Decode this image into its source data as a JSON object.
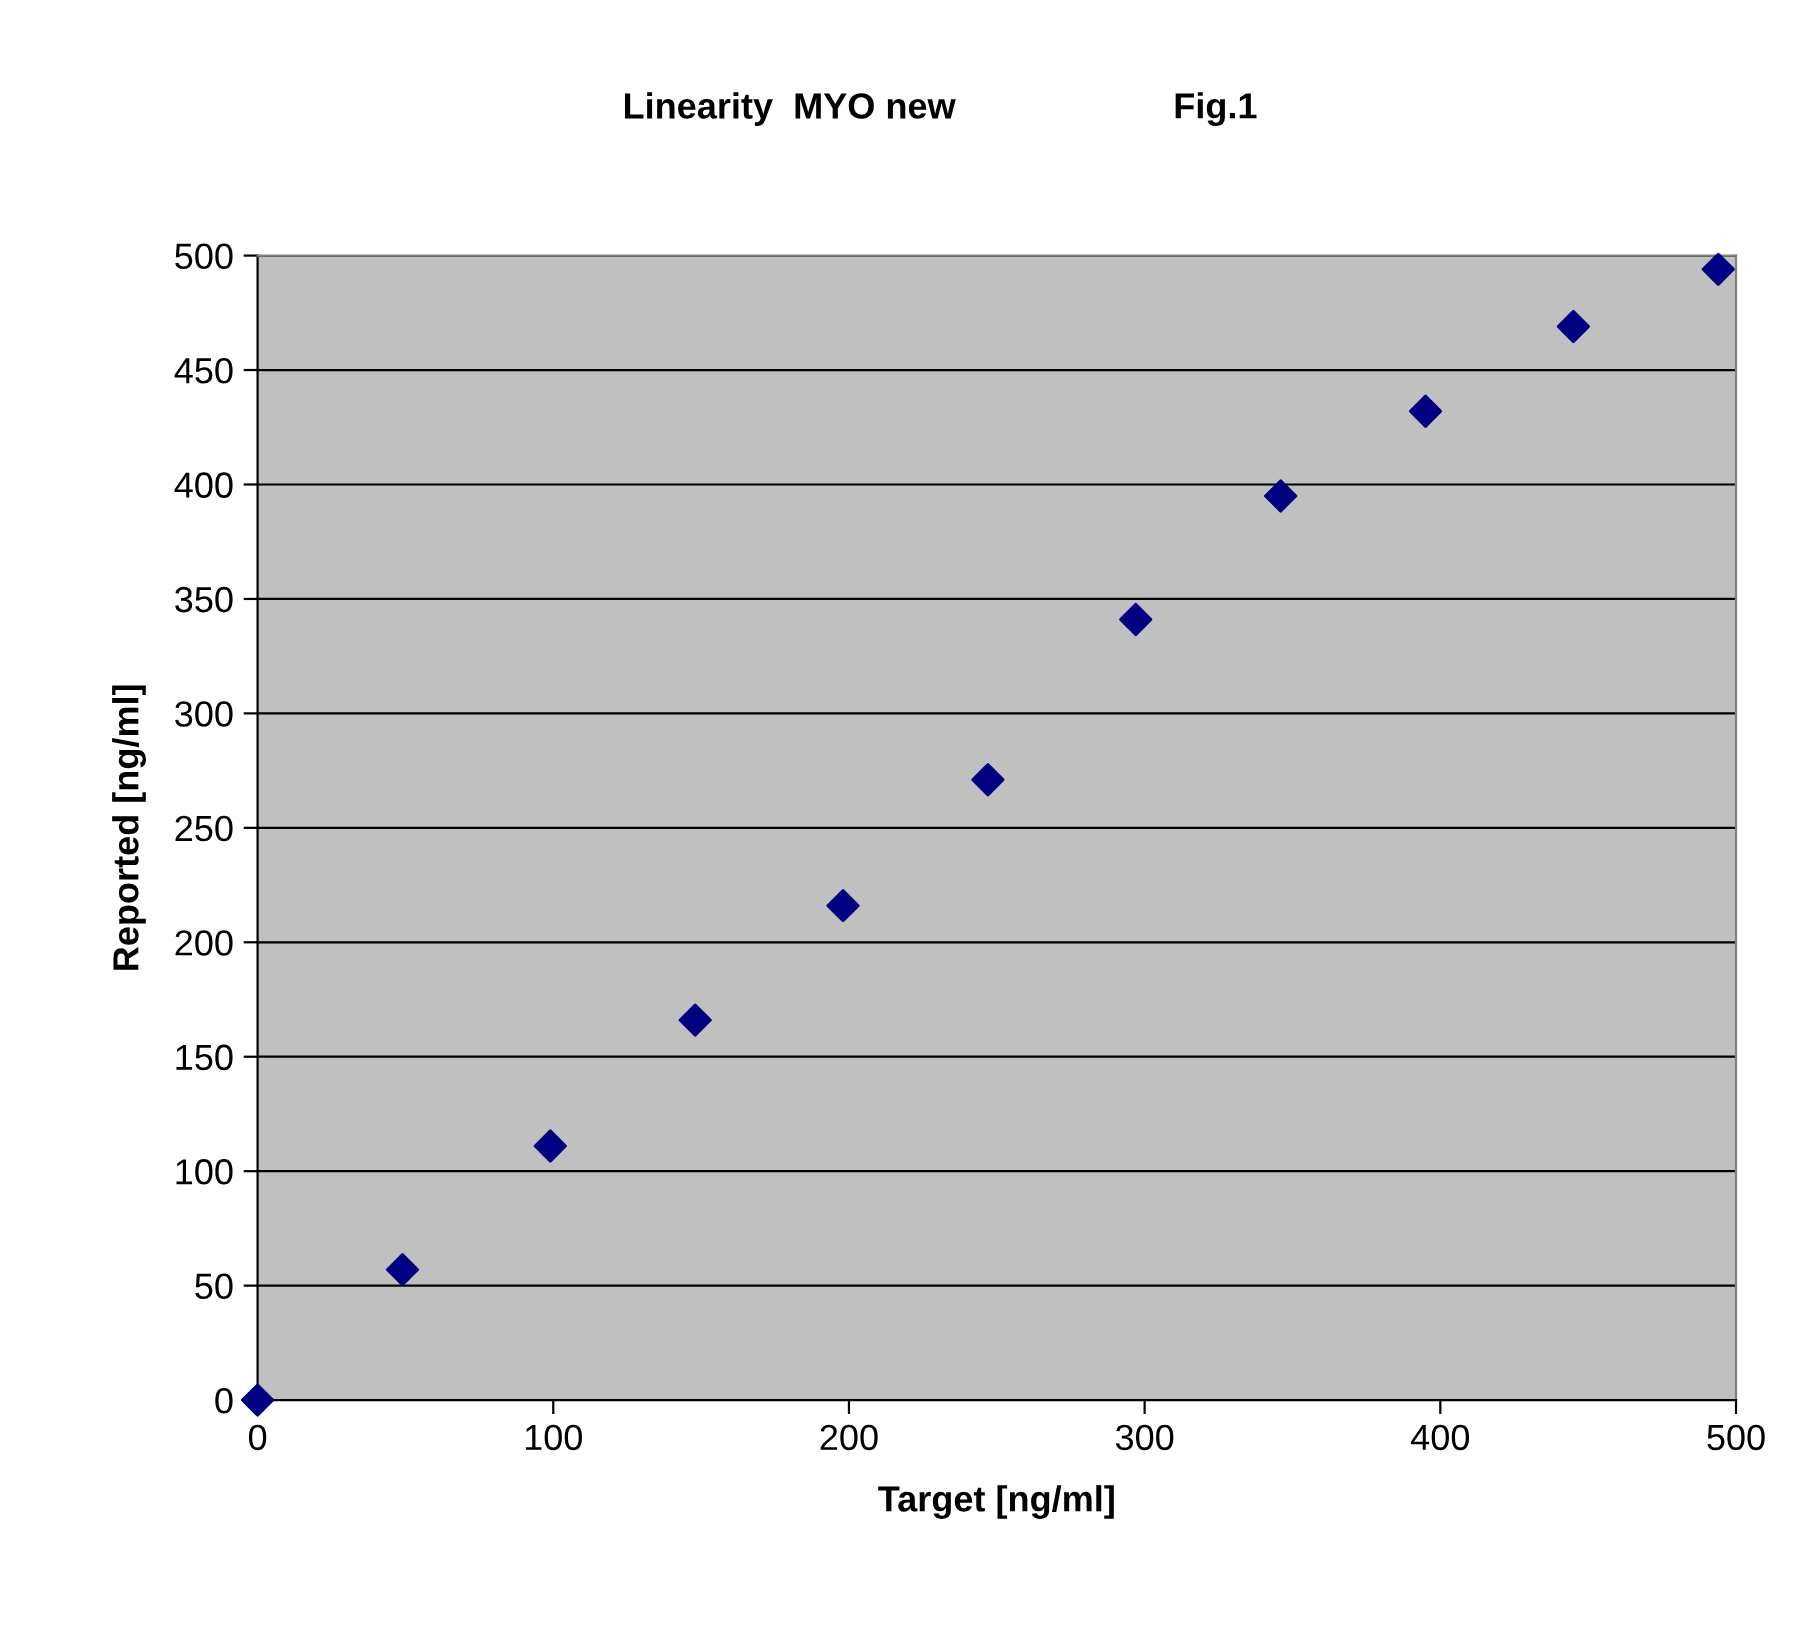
{
  "chart_data": {
    "type": "scatter",
    "title": "Linearity  MYO new",
    "annotations": [
      "Fig.1"
    ],
    "xlabel": "Target [ng/ml]",
    "ylabel": "Reported [ng/ml]",
    "x": [
      0,
      49,
      99,
      148,
      198,
      247,
      297,
      346,
      395,
      445,
      494
    ],
    "series": [
      {
        "color": "#000080",
        "values": [
          0,
          57,
          111,
          166,
          216,
          271,
          341,
          395,
          432,
          469,
          494
        ]
      }
    ],
    "xlim": [
      0,
      500
    ],
    "xticks": [
      0,
      100,
      200,
      300,
      400,
      500
    ],
    "ylim": [
      0,
      500
    ],
    "yticks": [
      0,
      50,
      100,
      150,
      200,
      250,
      300,
      350,
      400,
      450,
      500
    ],
    "grid": "y",
    "marker": "diamond"
  }
}
